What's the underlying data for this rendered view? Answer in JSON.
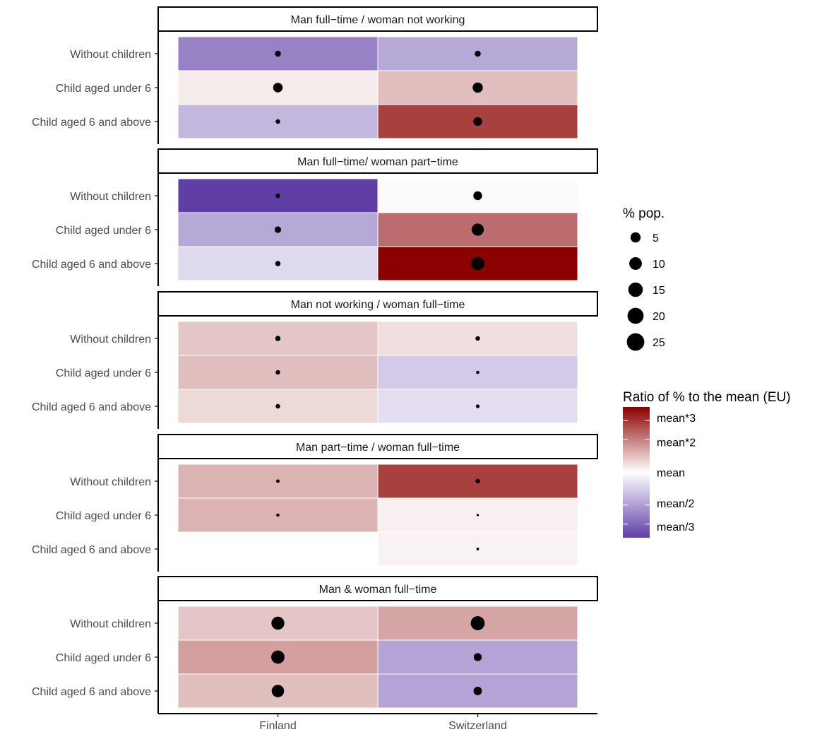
{
  "chart_data": {
    "type": "heatmap",
    "x_categories": [
      "Finland",
      "Switzerland"
    ],
    "y_categories": [
      "Without children",
      "Child aged under 6",
      "Child aged 6 and above"
    ],
    "panels": [
      {
        "title": "Man full−time / woman not working",
        "cells": [
          {
            "x": "Finland",
            "y": "Without children",
            "ratio_log2": -1.3,
            "pct_pop": 5
          },
          {
            "x": "Switzerland",
            "y": "Without children",
            "ratio_log2": -0.9,
            "pct_pop": 5
          },
          {
            "x": "Finland",
            "y": "Child aged under 6",
            "ratio_log2": 0.15,
            "pct_pop": 13
          },
          {
            "x": "Switzerland",
            "y": "Child aged under 6",
            "ratio_log2": 0.5,
            "pct_pop": 15
          },
          {
            "x": "Finland",
            "y": "Child aged 6 and above",
            "ratio_log2": -0.75,
            "pct_pop": 3
          },
          {
            "x": "Switzerland",
            "y": "Child aged 6 and above",
            "ratio_log2": 1.5,
            "pct_pop": 11
          }
        ]
      },
      {
        "title": "Man full−time/ woman part−time",
        "cells": [
          {
            "x": "Finland",
            "y": "Without children",
            "ratio_log2": -2.0,
            "pct_pop": 3
          },
          {
            "x": "Switzerland",
            "y": "Without children",
            "ratio_log2": -0.05,
            "pct_pop": 11
          },
          {
            "x": "Finland",
            "y": "Child aged under 6",
            "ratio_log2": -0.9,
            "pct_pop": 6
          },
          {
            "x": "Switzerland",
            "y": "Child aged under 6",
            "ratio_log2": 1.15,
            "pct_pop": 21
          },
          {
            "x": "Finland",
            "y": "Child aged 6 and above",
            "ratio_log2": -0.4,
            "pct_pop": 4
          },
          {
            "x": "Switzerland",
            "y": "Child aged 6 and above",
            "ratio_log2": 2.0,
            "pct_pop": 25
          }
        ]
      },
      {
        "title": "Man not working / woman full−time",
        "cells": [
          {
            "x": "Finland",
            "y": "Without children",
            "ratio_log2": 0.45,
            "pct_pop": 4
          },
          {
            "x": "Switzerland",
            "y": "Without children",
            "ratio_log2": 0.25,
            "pct_pop": 3
          },
          {
            "x": "Finland",
            "y": "Child aged under 6",
            "ratio_log2": 0.5,
            "pct_pop": 3
          },
          {
            "x": "Switzerland",
            "y": "Child aged under 6",
            "ratio_log2": -0.55,
            "pct_pop": 1.5
          },
          {
            "x": "Finland",
            "y": "Child aged 6 and above",
            "ratio_log2": 0.3,
            "pct_pop": 3
          },
          {
            "x": "Switzerland",
            "y": "Child aged 6 and above",
            "ratio_log2": -0.35,
            "pct_pop": 2
          }
        ]
      },
      {
        "title": "Man part−time / woman full−time",
        "cells": [
          {
            "x": "Finland",
            "y": "Without children",
            "ratio_log2": 0.6,
            "pct_pop": 1.8
          },
          {
            "x": "Switzerland",
            "y": "Without children",
            "ratio_log2": 1.5,
            "pct_pop": 3
          },
          {
            "x": "Finland",
            "y": "Child aged under 6",
            "ratio_log2": 0.6,
            "pct_pop": 1.5
          },
          {
            "x": "Switzerland",
            "y": "Child aged under 6",
            "ratio_log2": 0.12,
            "pct_pop": 0.8
          },
          {
            "x": "Switzerland",
            "y": "Child aged 6 and above",
            "ratio_log2": 0.1,
            "pct_pop": 1
          }
        ]
      },
      {
        "title": "Man & woman full−time",
        "cells": [
          {
            "x": "Finland",
            "y": "Without children",
            "ratio_log2": 0.45,
            "pct_pop": 24
          },
          {
            "x": "Switzerland",
            "y": "Without children",
            "ratio_log2": 0.7,
            "pct_pop": 28
          },
          {
            "x": "Finland",
            "y": "Child aged under 6",
            "ratio_log2": 0.75,
            "pct_pop": 25
          },
          {
            "x": "Switzerland",
            "y": "Child aged under 6",
            "ratio_log2": -0.95,
            "pct_pop": 9
          },
          {
            "x": "Finland",
            "y": "Child aged 6 and above",
            "ratio_log2": 0.5,
            "pct_pop": 22
          },
          {
            "x": "Switzerland",
            "y": "Child aged 6 and above",
            "ratio_log2": -0.95,
            "pct_pop": 10
          }
        ]
      }
    ],
    "legend_size": {
      "title": "% pop.",
      "values": [
        5,
        10,
        15,
        20,
        25
      ]
    },
    "legend_color": {
      "title": "Ratio of % to the mean (EU)",
      "labels": [
        "mean*3",
        "mean*2",
        "mean",
        "mean/2",
        "mean/3"
      ],
      "label_values_log2": [
        1.585,
        1.0,
        0.0,
        -1.0,
        -1.585
      ],
      "range_log2": [
        -2.0,
        2.0
      ],
      "colors": {
        "low": "#5f3fa6",
        "mid": "#ffffff",
        "high": "#8b0000"
      }
    }
  }
}
